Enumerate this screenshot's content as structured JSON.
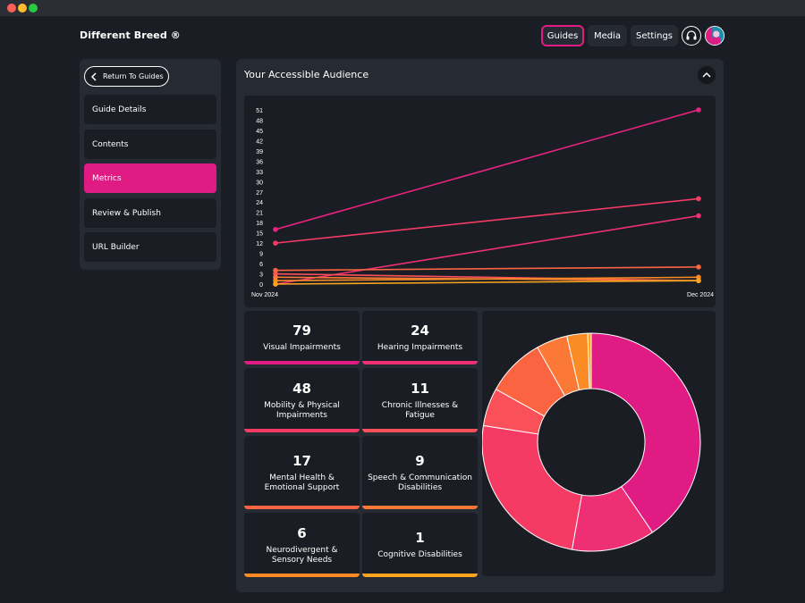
{
  "window": {
    "title": "Different Breed"
  },
  "header": {
    "brand": "Different Breed ®",
    "nav": [
      {
        "label": "Guides",
        "active": true
      },
      {
        "label": "Media",
        "active": false
      },
      {
        "label": "Settings",
        "active": false
      }
    ]
  },
  "sidebar": {
    "back_label": "Return To Guides",
    "items": [
      {
        "label": "Guide Details",
        "active": false
      },
      {
        "label": "Contents",
        "active": false
      },
      {
        "label": "Metrics",
        "active": true
      },
      {
        "label": "Review & Publish",
        "active": false
      },
      {
        "label": "URL Builder",
        "active": false
      }
    ]
  },
  "main": {
    "title": "Your Accessible Audience",
    "stats": [
      {
        "value": "79",
        "label": "Visual Impairments",
        "color": "#e01b84"
      },
      {
        "value": "24",
        "label": "Hearing Impairments",
        "color": "#ef2f74"
      },
      {
        "value": "48",
        "label": "Mobility & Physical Impairments",
        "color": "#f53b64"
      },
      {
        "value": "11",
        "label": "Chronic Illnesses & Fatigue",
        "color": "#f9505a"
      },
      {
        "value": "17",
        "label": "Mental Health & Emotional Support",
        "color": "#fb6441"
      },
      {
        "value": "9",
        "label": "Speech & Communication Disabilities",
        "color": "#fc7836"
      },
      {
        "value": "6",
        "label": "Neurodivergent & Sensory Needs",
        "color": "#fb8c25"
      },
      {
        "value": "1",
        "label": "Cognitive Disabilities",
        "color": "#fba51e"
      }
    ]
  },
  "chart_data": [
    {
      "type": "line",
      "x": [
        "Nov 2024",
        "Dec 2024"
      ],
      "ylim": [
        0,
        51
      ],
      "yticks": [
        "0",
        "3",
        "6",
        "9",
        "12",
        "15",
        "18",
        "21",
        "24",
        "27",
        "30",
        "33",
        "36",
        "39",
        "42",
        "45",
        "48",
        "51"
      ],
      "series": [
        {
          "name": "Visual Impairments",
          "values": [
            16,
            51
          ],
          "color": "#e8227f"
        },
        {
          "name": "Hearing Impairments",
          "values": [
            0,
            20
          ],
          "color": "#ef2f74"
        },
        {
          "name": "Mobility & Physical Impairments",
          "values": [
            12,
            25
          ],
          "color": "#f53b64"
        },
        {
          "name": "Chronic Illnesses & Fatigue",
          "values": [
            3,
            1
          ],
          "color": "#f9505a"
        },
        {
          "name": "Mental Health & Emotional Support",
          "values": [
            4,
            5
          ],
          "color": "#fb6441"
        },
        {
          "name": "Speech & Communication Disabilities",
          "values": [
            2,
            1
          ],
          "color": "#fc7836"
        },
        {
          "name": "Neurodivergent & Sensory Needs",
          "values": [
            1,
            2
          ],
          "color": "#fb8c25"
        },
        {
          "name": "Cognitive Disabilities",
          "values": [
            0,
            1
          ],
          "color": "#fba51e"
        }
      ]
    },
    {
      "type": "pie",
      "donut": true,
      "categories": [
        "Visual Impairments",
        "Hearing Impairments",
        "Mobility & Physical Impairments",
        "Chronic Illnesses & Fatigue",
        "Mental Health & Emotional Support",
        "Speech & Communication Disabilities",
        "Neurodivergent & Sensory Needs",
        "Cognitive Disabilities"
      ],
      "values": [
        79,
        24,
        48,
        11,
        17,
        9,
        6,
        1
      ],
      "colors": [
        "#e01b84",
        "#ef2f74",
        "#f53b64",
        "#f9505a",
        "#fb6441",
        "#fc7836",
        "#fb8c25",
        "#fba51e"
      ]
    }
  ]
}
